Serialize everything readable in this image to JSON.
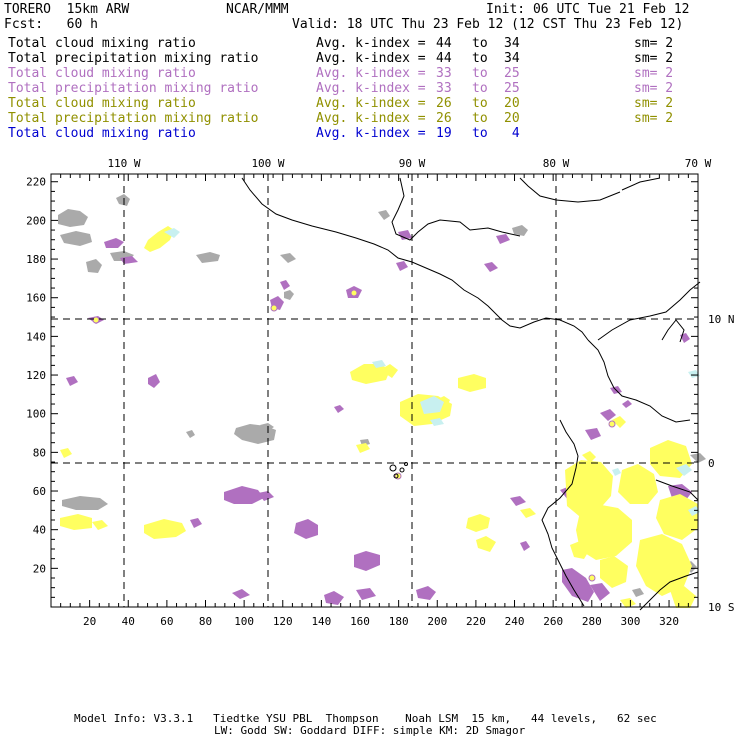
{
  "header": {
    "model": "TORERO  15km ARW",
    "center": "NCAR/MMM",
    "init": "Init: 06 UTC Tue 21 Feb 12",
    "fcst": "Fcst:   60 h",
    "valid": "Valid: 18 UTC Thu 23 Feb 12 (12 CST Thu 23 Feb 12)"
  },
  "legend": [
    {
      "field": "Total cloud mixing ratio",
      "kindex": "Avg. k-index = ",
      "from": "44",
      "to_word": "to",
      "to": "34",
      "sm": "sm= 2",
      "color": "#000000"
    },
    {
      "field": "Total precipitation mixing ratio",
      "kindex": "Avg. k-index = ",
      "from": "44",
      "to_word": "to",
      "to": "34",
      "sm": "sm= 2",
      "color": "#000000"
    },
    {
      "field": "Total cloud mixing ratio",
      "kindex": "Avg. k-index = ",
      "from": "33",
      "to_word": "to",
      "to": "25",
      "sm": "sm= 2",
      "color": "#b070c0"
    },
    {
      "field": "Total precipitation mixing ratio",
      "kindex": "Avg. k-index = ",
      "from": "33",
      "to_word": "to",
      "to": "25",
      "sm": "sm= 2",
      "color": "#b070c0"
    },
    {
      "field": "Total cloud mixing ratio",
      "kindex": "Avg. k-index = ",
      "from": "26",
      "to_word": "to",
      "to": "20",
      "sm": "sm= 2",
      "color": "#909000"
    },
    {
      "field": "Total precipitation mixing ratio",
      "kindex": "Avg. k-index = ",
      "from": "26",
      "to_word": "to",
      "to": "20",
      "sm": "sm= 2",
      "color": "#909000"
    },
    {
      "field": "Total cloud mixing ratio",
      "kindex": "Avg. k-index = ",
      "from": "19",
      "to_word": "to",
      "to": " 4",
      "sm": "",
      "color": "#0000d0"
    }
  ],
  "map": {
    "lon_labels": [
      "110 W",
      "100 W",
      "90 W",
      "80 W",
      "70 W"
    ],
    "lat_labels": [
      "10 N",
      "0",
      "10 S"
    ],
    "x_ticks": [
      "20",
      "40",
      "60",
      "80",
      "100",
      "120",
      "140",
      "160",
      "180",
      "200",
      "220",
      "240",
      "260",
      "280",
      "300",
      "320"
    ],
    "y_ticks": [
      "220",
      "200",
      "180",
      "160",
      "140",
      "120",
      "100",
      "80",
      "60",
      "40",
      "20"
    ]
  },
  "footer": {
    "line1": "Model Info: V3.3.1   Tiedtke YSU PBL  Thompson    Noah LSM  15 km,   44 levels,   62 sec",
    "line2": "LW: Godd SW: Goddard DIFF: simple KM: 2D Smagor"
  },
  "colors": {
    "gray": "#aaaaaa",
    "purple": "#b070c0",
    "yellow": "#ffff50",
    "cyan": "#c8f0f0",
    "olive": "#c0c070"
  }
}
